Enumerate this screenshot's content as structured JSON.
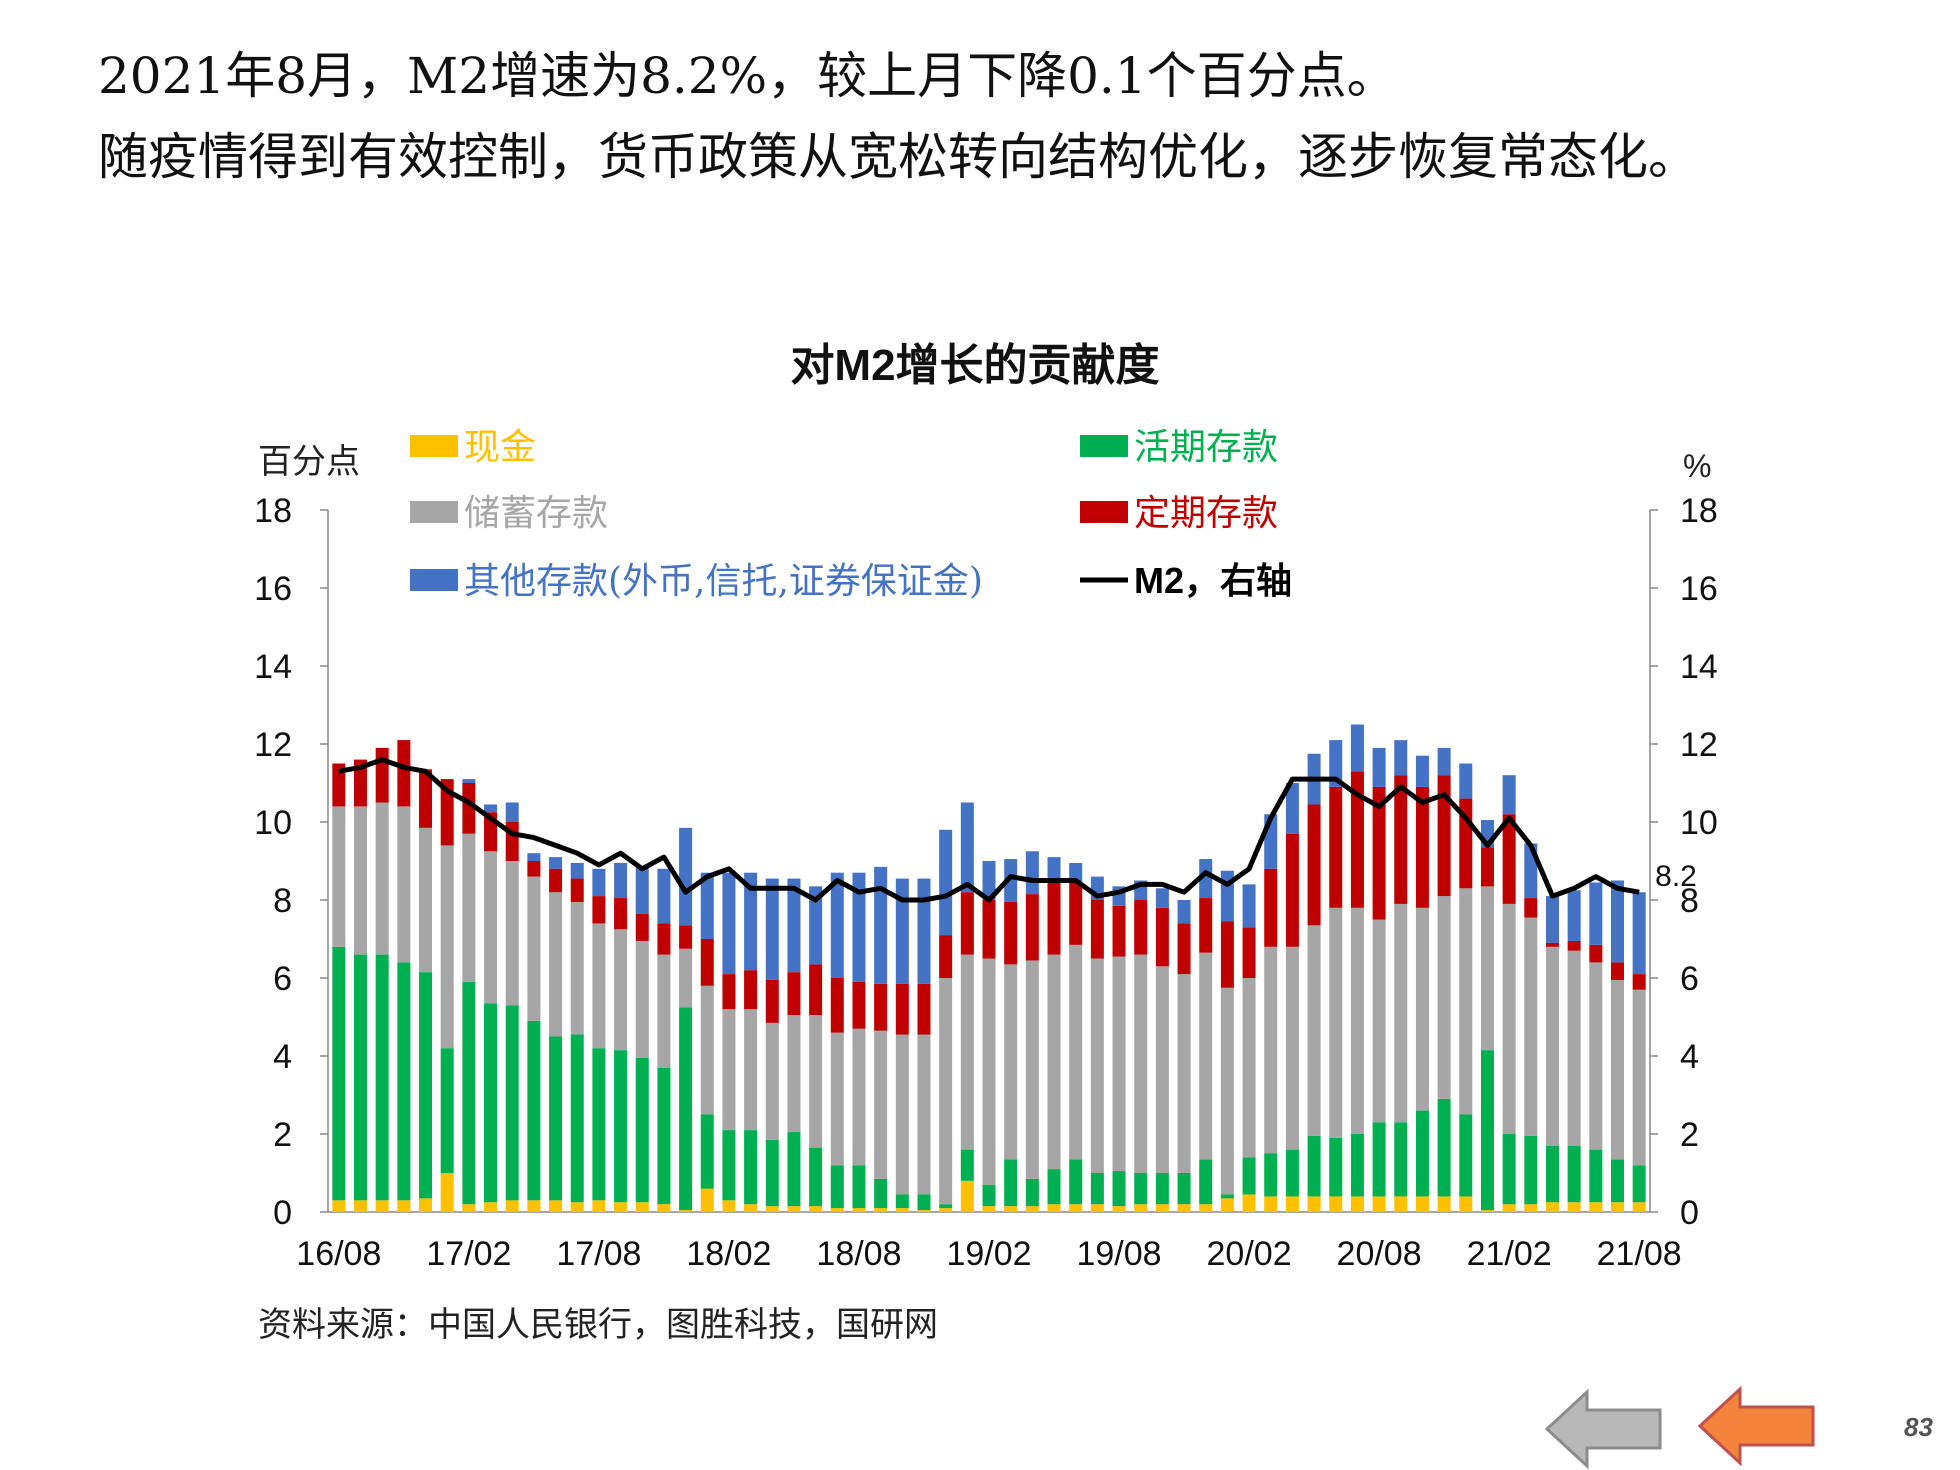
{
  "slide": {
    "headline_1": "2021年8月，M2增速为8.2%，较上月下降0.1个百分点。",
    "headline_2": "随疫情得到有效控制，货币政策从宽松转向结构优化，逐步恢复常态化。",
    "page_number": "83",
    "source": "资料来源：中国人民银行，图胜科技，国研网"
  },
  "nav": {
    "back_icon": "arrow-left-gray-icon",
    "forward_icon": "arrow-left-orange-icon"
  },
  "chart_data": {
    "type": "bar",
    "stacked": true,
    "title": "对M2增长的贡献度",
    "ylabel_left": "百分点",
    "ylabel_right": "%",
    "ylim": [
      0,
      18
    ],
    "y2lim": [
      0,
      18
    ],
    "yticks": [
      0,
      2,
      4,
      6,
      8,
      10,
      12,
      14,
      16,
      18
    ],
    "grid": false,
    "x": [
      "16/08",
      "16/09",
      "16/10",
      "16/11",
      "16/12",
      "17/01",
      "17/02",
      "17/03",
      "17/04",
      "17/05",
      "17/06",
      "17/07",
      "17/08",
      "17/09",
      "17/10",
      "17/11",
      "17/12",
      "18/01",
      "18/02",
      "18/03",
      "18/04",
      "18/05",
      "18/06",
      "18/07",
      "18/08",
      "18/09",
      "18/10",
      "18/11",
      "18/12",
      "19/01",
      "19/02",
      "19/03",
      "19/04",
      "19/05",
      "19/06",
      "19/07",
      "19/08",
      "19/09",
      "19/10",
      "19/11",
      "19/12",
      "20/01",
      "20/02",
      "20/03",
      "20/04",
      "20/05",
      "20/06",
      "20/07",
      "20/08",
      "20/09",
      "20/10",
      "20/11",
      "20/12",
      "21/01",
      "21/02",
      "21/03",
      "21/04",
      "21/05",
      "21/06",
      "21/07",
      "21/08"
    ],
    "xtick_labels": [
      "16/08",
      "17/02",
      "17/08",
      "18/02",
      "18/08",
      "19/02",
      "19/08",
      "20/02",
      "20/08",
      "21/02",
      "21/08"
    ],
    "series": [
      {
        "name": "现金",
        "color": "#FFC000",
        "values": [
          0.3,
          0.3,
          0.3,
          0.3,
          0.35,
          1.0,
          0.2,
          0.25,
          0.3,
          0.3,
          0.3,
          0.25,
          0.3,
          0.25,
          0.25,
          0.2,
          0.05,
          0.6,
          0.3,
          0.2,
          0.15,
          0.15,
          0.15,
          0.1,
          0.1,
          0.1,
          0.1,
          0.05,
          0.1,
          0.8,
          0.15,
          0.15,
          0.15,
          0.2,
          0.2,
          0.2,
          0.15,
          0.2,
          0.2,
          0.2,
          0.2,
          0.35,
          0.45,
          0.4,
          0.4,
          0.4,
          0.4,
          0.4,
          0.4,
          0.4,
          0.4,
          0.4,
          0.4,
          0.05,
          0.2,
          0.2,
          0.25,
          0.25,
          0.25,
          0.25,
          0.25
        ]
      },
      {
        "name": "活期存款",
        "color": "#00B050",
        "values": [
          6.5,
          6.3,
          6.3,
          6.1,
          5.8,
          3.2,
          5.7,
          5.1,
          5.0,
          4.6,
          4.2,
          4.3,
          3.9,
          3.9,
          3.7,
          3.5,
          5.2,
          1.9,
          1.8,
          1.9,
          1.7,
          1.9,
          1.5,
          1.1,
          1.1,
          0.75,
          0.35,
          0.4,
          0.1,
          0.8,
          0.55,
          1.2,
          0.7,
          0.9,
          1.15,
          0.8,
          0.9,
          0.8,
          0.8,
          0.8,
          1.15,
          0.1,
          0.95,
          1.1,
          1.2,
          1.55,
          1.5,
          1.6,
          1.9,
          1.9,
          2.2,
          2.5,
          2.1,
          4.1,
          1.8,
          1.75,
          1.45,
          1.45,
          1.35,
          1.1,
          0.95
        ]
      },
      {
        "name": "储蓄存款",
        "color": "#A6A6A6",
        "values": [
          3.6,
          3.8,
          3.9,
          4.0,
          3.7,
          5.2,
          3.8,
          3.9,
          3.7,
          3.7,
          3.7,
          3.4,
          3.2,
          3.1,
          3.0,
          2.9,
          1.5,
          3.3,
          3.1,
          3.1,
          3.0,
          3.0,
          3.4,
          3.4,
          3.5,
          3.8,
          4.1,
          4.1,
          5.8,
          5.0,
          5.8,
          5.0,
          5.6,
          5.5,
          5.5,
          5.5,
          5.5,
          5.6,
          5.3,
          5.1,
          5.3,
          5.3,
          4.6,
          5.3,
          5.2,
          5.4,
          5.9,
          5.8,
          5.2,
          5.6,
          5.2,
          5.2,
          5.8,
          4.2,
          5.9,
          5.6,
          5.1,
          5.0,
          4.8,
          4.6,
          4.5
        ]
      },
      {
        "name": "定期存款",
        "color": "#C00000",
        "values": [
          1.1,
          1.2,
          1.4,
          1.7,
          1.5,
          1.7,
          1.3,
          1.0,
          1.0,
          0.4,
          0.6,
          0.6,
          0.7,
          0.8,
          0.7,
          0.8,
          0.6,
          1.2,
          0.9,
          1.0,
          1.1,
          1.1,
          1.3,
          1.4,
          1.2,
          1.2,
          1.3,
          1.3,
          1.1,
          1.6,
          1.5,
          1.6,
          1.7,
          1.9,
          1.6,
          1.5,
          1.3,
          1.4,
          1.5,
          1.3,
          1.4,
          1.7,
          1.3,
          2.0,
          2.9,
          3.1,
          3.1,
          3.5,
          3.4,
          3.3,
          3.1,
          3.1,
          2.3,
          1.0,
          2.3,
          0.5,
          0.1,
          0.25,
          0.45,
          0.45,
          0.4
        ]
      },
      {
        "name": "其他存款(外币,信托,证券保证金)",
        "color": "#4472C4",
        "values": [
          0.0,
          0.0,
          0.0,
          0.0,
          0.0,
          0.0,
          0.1,
          0.2,
          0.5,
          0.2,
          0.3,
          0.4,
          0.7,
          0.9,
          1.2,
          1.4,
          2.5,
          1.7,
          2.6,
          2.5,
          2.6,
          2.4,
          2.0,
          2.7,
          2.8,
          3.0,
          2.7,
          2.7,
          2.7,
          2.3,
          1.0,
          1.1,
          1.1,
          0.6,
          0.5,
          0.6,
          0.5,
          0.5,
          0.5,
          0.6,
          1.0,
          1.3,
          1.1,
          1.4,
          1.3,
          1.3,
          1.2,
          1.2,
          1.0,
          0.9,
          0.8,
          0.7,
          0.9,
          0.7,
          1.0,
          1.4,
          1.2,
          1.3,
          1.6,
          2.1,
          2.1
        ]
      },
      {
        "name": "M2，右轴",
        "color": "#000000",
        "axis": "right",
        "type": "line",
        "values": [
          11.3,
          11.4,
          11.6,
          11.4,
          11.3,
          10.8,
          10.5,
          10.1,
          9.7,
          9.6,
          9.4,
          9.2,
          8.9,
          9.2,
          8.8,
          9.1,
          8.2,
          8.6,
          8.8,
          8.3,
          8.3,
          8.3,
          8.0,
          8.5,
          8.2,
          8.3,
          8.0,
          8.0,
          8.1,
          8.4,
          8.0,
          8.6,
          8.5,
          8.5,
          8.5,
          8.1,
          8.2,
          8.4,
          8.4,
          8.2,
          8.7,
          8.4,
          8.8,
          10.1,
          11.1,
          11.1,
          11.1,
          10.7,
          10.4,
          10.9,
          10.5,
          10.7,
          10.1,
          9.4,
          10.1,
          9.4,
          8.1,
          8.3,
          8.6,
          8.3,
          8.2
        ]
      }
    ],
    "annotations": [
      {
        "text": "8.2",
        "series": "M2，右轴",
        "index": 60
      }
    ],
    "legend_position": "top"
  }
}
